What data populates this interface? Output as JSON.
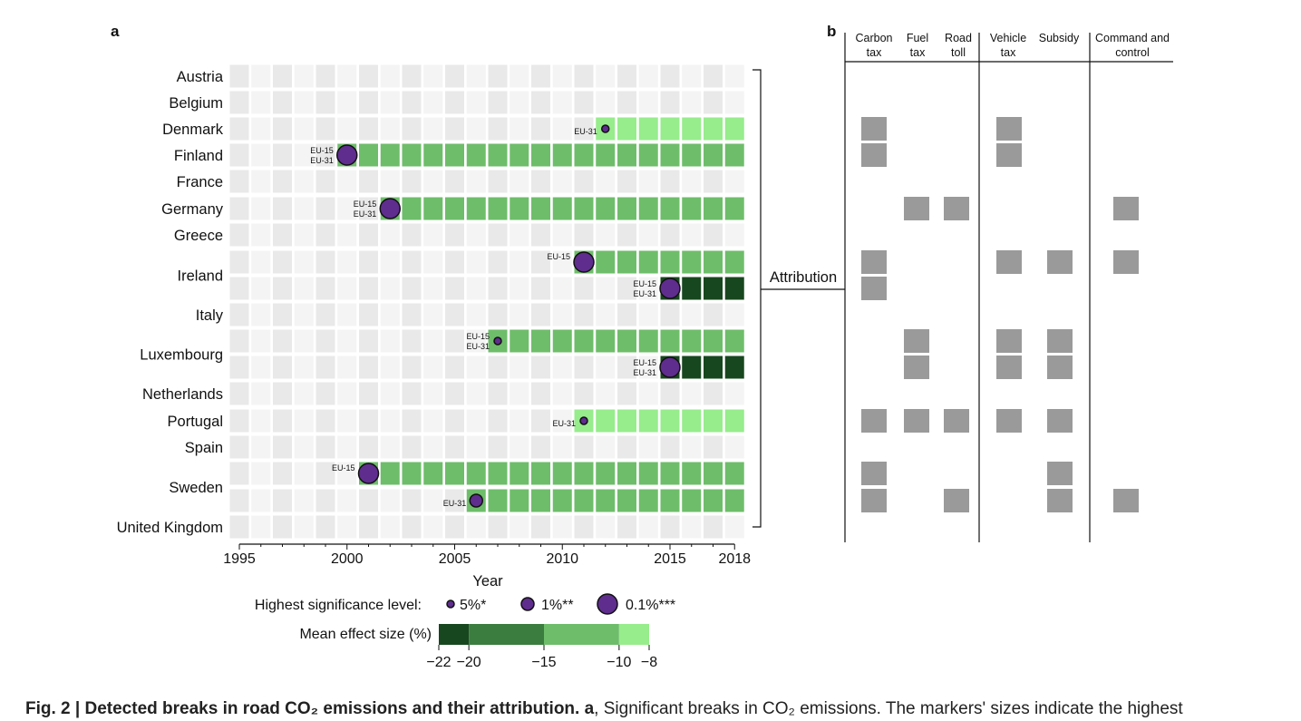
{
  "panel_a_label": "a",
  "panel_b_label": "b",
  "chart_data": [
    {
      "type": "heatmap",
      "panel": "a",
      "title": "",
      "xlabel": "Year",
      "x_ticks": [
        1995,
        2000,
        2005,
        2010,
        2015,
        2018
      ],
      "xlim": [
        1995,
        2018
      ],
      "countries": [
        "Austria",
        "Belgium",
        "Denmark",
        "Finland",
        "France",
        "Germany",
        "Greece",
        "Ireland",
        "Italy",
        "Luxembourg",
        "Netherlands",
        "Portugal",
        "Spain",
        "Sweden",
        "United Kingdom"
      ],
      "breaks": [
        {
          "country": "Denmark",
          "year": 2012,
          "significance": "5%*",
          "samples": [
            "EU-31"
          ],
          "effect_bin": "-10 to -8"
        },
        {
          "country": "Finland",
          "year": 2000,
          "significance": "0.1%***",
          "samples": [
            "EU-15",
            "EU-31"
          ],
          "effect_bin": "-15 to -10"
        },
        {
          "country": "Germany",
          "year": 2002,
          "significance": "0.1%***",
          "samples": [
            "EU-15",
            "EU-31"
          ],
          "effect_bin": "-15 to -10"
        },
        {
          "country": "Ireland",
          "year": 2011,
          "significance": "0.1%***",
          "samples": [
            "EU-15"
          ],
          "effect_bin": "-15 to -10"
        },
        {
          "country": "Ireland",
          "year": 2015,
          "significance": "0.1%***",
          "samples": [
            "EU-15",
            "EU-31"
          ],
          "effect_bin": "-22 to -20"
        },
        {
          "country": "Luxembourg",
          "year": 2007,
          "significance": "5%*",
          "samples": [
            "EU-15",
            "EU-31"
          ],
          "effect_bin": "-15 to -10"
        },
        {
          "country": "Luxembourg",
          "year": 2015,
          "significance": "0.1%***",
          "samples": [
            "EU-15",
            "EU-31"
          ],
          "effect_bin": "-22 to -20"
        },
        {
          "country": "Portugal",
          "year": 2011,
          "significance": "5%*",
          "samples": [
            "EU-31"
          ],
          "effect_bin": "-10 to -8"
        },
        {
          "country": "Sweden",
          "year": 2001,
          "significance": "0.1%***",
          "samples": [
            "EU-15"
          ],
          "effect_bin": "-15 to -10"
        },
        {
          "country": "Sweden",
          "year": 2006,
          "significance": "1%**",
          "samples": [
            "EU-31"
          ],
          "effect_bin": "-15 to -10"
        }
      ],
      "significance_legend": {
        "label": "Highest significance level:",
        "levels": [
          "5%*",
          "1%**",
          "0.1%***"
        ]
      },
      "effect_legend": {
        "label": "Mean effect size (%)",
        "ticks": [
          "−22",
          "−20",
          "−15",
          "−10",
          "−8"
        ],
        "colors": [
          "#17471e",
          "#3a7d3e",
          "#6ebd6a",
          "#97ec8c"
        ]
      },
      "colors": {
        "background_cell": "#e9e9e9",
        "background_cell_alt": "#f4f4f4",
        "marker_fill": "#5f2d8e",
        "marker_stroke": "#111111"
      }
    },
    {
      "type": "table",
      "panel": "b",
      "bracket_label": "Attribution",
      "columns": [
        {
          "line1": "Carbon",
          "line2": "tax"
        },
        {
          "line1": "Fuel",
          "line2": "tax"
        },
        {
          "line1": "Road",
          "line2": "toll"
        },
        {
          "line1": "Vehicle",
          "line2": "tax"
        },
        {
          "line1": "Subsidy",
          "line2": ""
        },
        {
          "line1": "Command and",
          "line2": "control"
        }
      ],
      "attribution": [
        {
          "break": "Denmark 2012",
          "policies": [
            "Carbon tax",
            "Vehicle tax"
          ]
        },
        {
          "break": "Finland 2000",
          "policies": [
            "Carbon tax",
            "Vehicle tax"
          ]
        },
        {
          "break": "Germany 2002",
          "policies": [
            "Fuel tax",
            "Road toll",
            "Command and control"
          ]
        },
        {
          "break": "Ireland 2011",
          "policies": [
            "Carbon tax",
            "Vehicle tax",
            "Subsidy",
            "Command and control"
          ]
        },
        {
          "break": "Ireland 2015",
          "policies": [
            "Carbon tax"
          ]
        },
        {
          "break": "Luxembourg 2007",
          "policies": [
            "Fuel tax",
            "Vehicle tax",
            "Subsidy"
          ]
        },
        {
          "break": "Luxembourg 2015",
          "policies": [
            "Fuel tax",
            "Vehicle tax",
            "Subsidy"
          ]
        },
        {
          "break": "Portugal 2011",
          "policies": [
            "Carbon tax",
            "Fuel tax",
            "Road toll",
            "Vehicle tax",
            "Subsidy"
          ]
        },
        {
          "break": "Sweden 2001",
          "policies": [
            "Carbon tax",
            "Subsidy"
          ]
        },
        {
          "break": "Sweden 2006",
          "policies": [
            "Carbon tax",
            "Road toll",
            "Subsidy",
            "Command and control"
          ]
        }
      ],
      "cell_color": "#9a9a9a"
    }
  ],
  "caption": {
    "bold": "Fig. 2 | Detected breaks in road CO₂ emissions and their attribution. a",
    "rest": ", Significant breaks in CO₂ emissions. The markers' sizes indicate the highest"
  }
}
